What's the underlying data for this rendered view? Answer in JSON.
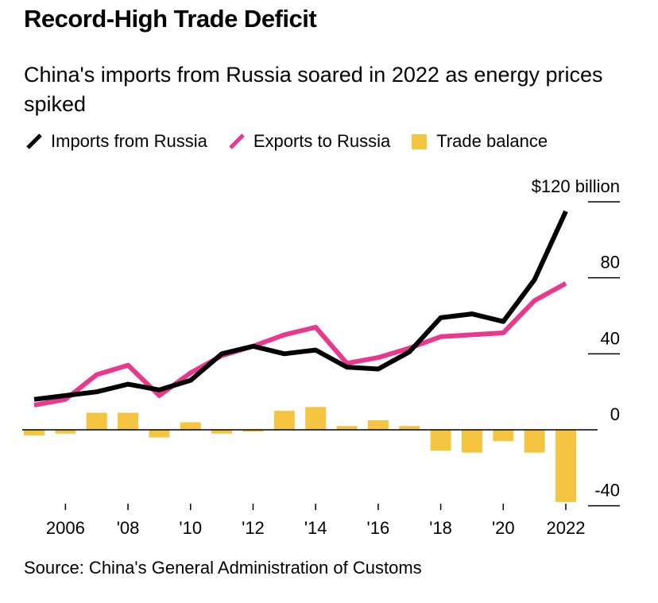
{
  "title": "Record-High Trade Deficit",
  "subtitle": "China's imports from Russia soared in 2022 as energy prices spiked",
  "source": "Source: China's General Administration of Customs",
  "legend": [
    {
      "label": "Imports from Russia",
      "color": "#000000",
      "kind": "line"
    },
    {
      "label": "Exports to Russia",
      "color": "#e8398f",
      "kind": "line"
    },
    {
      "label": "Trade balance",
      "color": "#f5c542",
      "kind": "bar"
    }
  ],
  "chart_data": {
    "type": "line",
    "title": "Record-High Trade Deficit",
    "x": [
      2005,
      2006,
      2007,
      2008,
      2009,
      2010,
      2011,
      2012,
      2013,
      2014,
      2015,
      2016,
      2017,
      2018,
      2019,
      2020,
      2021,
      2022
    ],
    "series": [
      {
        "name": "Imports from Russia",
        "type": "line",
        "color": "#000000",
        "values": [
          16,
          18,
          20,
          24,
          21,
          26,
          40,
          44,
          40,
          42,
          33,
          32,
          41,
          59,
          61,
          57,
          79,
          115
        ]
      },
      {
        "name": "Exports to Russia",
        "type": "line",
        "color": "#e8398f",
        "values": [
          13,
          16,
          29,
          34,
          18,
          30,
          39,
          44,
          50,
          54,
          35,
          38,
          43,
          49,
          50,
          51,
          68,
          77
        ]
      },
      {
        "name": "Trade balance",
        "type": "bar",
        "color": "#f5c542",
        "values": [
          -3,
          -2,
          9,
          9,
          -4,
          4,
          -2,
          -1,
          10,
          12,
          2,
          5,
          2,
          -11,
          -12,
          -6,
          -12,
          -38
        ]
      }
    ],
    "ylim": [
      -40,
      120
    ],
    "yticks": [
      {
        "value": 120,
        "label": "$120 billion"
      },
      {
        "value": 80,
        "label": "80"
      },
      {
        "value": 40,
        "label": "40"
      },
      {
        "value": 0,
        "label": "0"
      },
      {
        "value": -40,
        "label": "-40"
      }
    ],
    "xticks": [
      {
        "value": 2006,
        "label": "2006"
      },
      {
        "value": 2008,
        "label": "'08"
      },
      {
        "value": 2010,
        "label": "'10"
      },
      {
        "value": 2012,
        "label": "'12"
      },
      {
        "value": 2014,
        "label": "'14"
      },
      {
        "value": 2016,
        "label": "'16"
      },
      {
        "value": 2018,
        "label": "'18"
      },
      {
        "value": 2020,
        "label": "'20"
      },
      {
        "value": 2022,
        "label": "2022"
      }
    ],
    "xlabel": "",
    "ylabel": ""
  }
}
